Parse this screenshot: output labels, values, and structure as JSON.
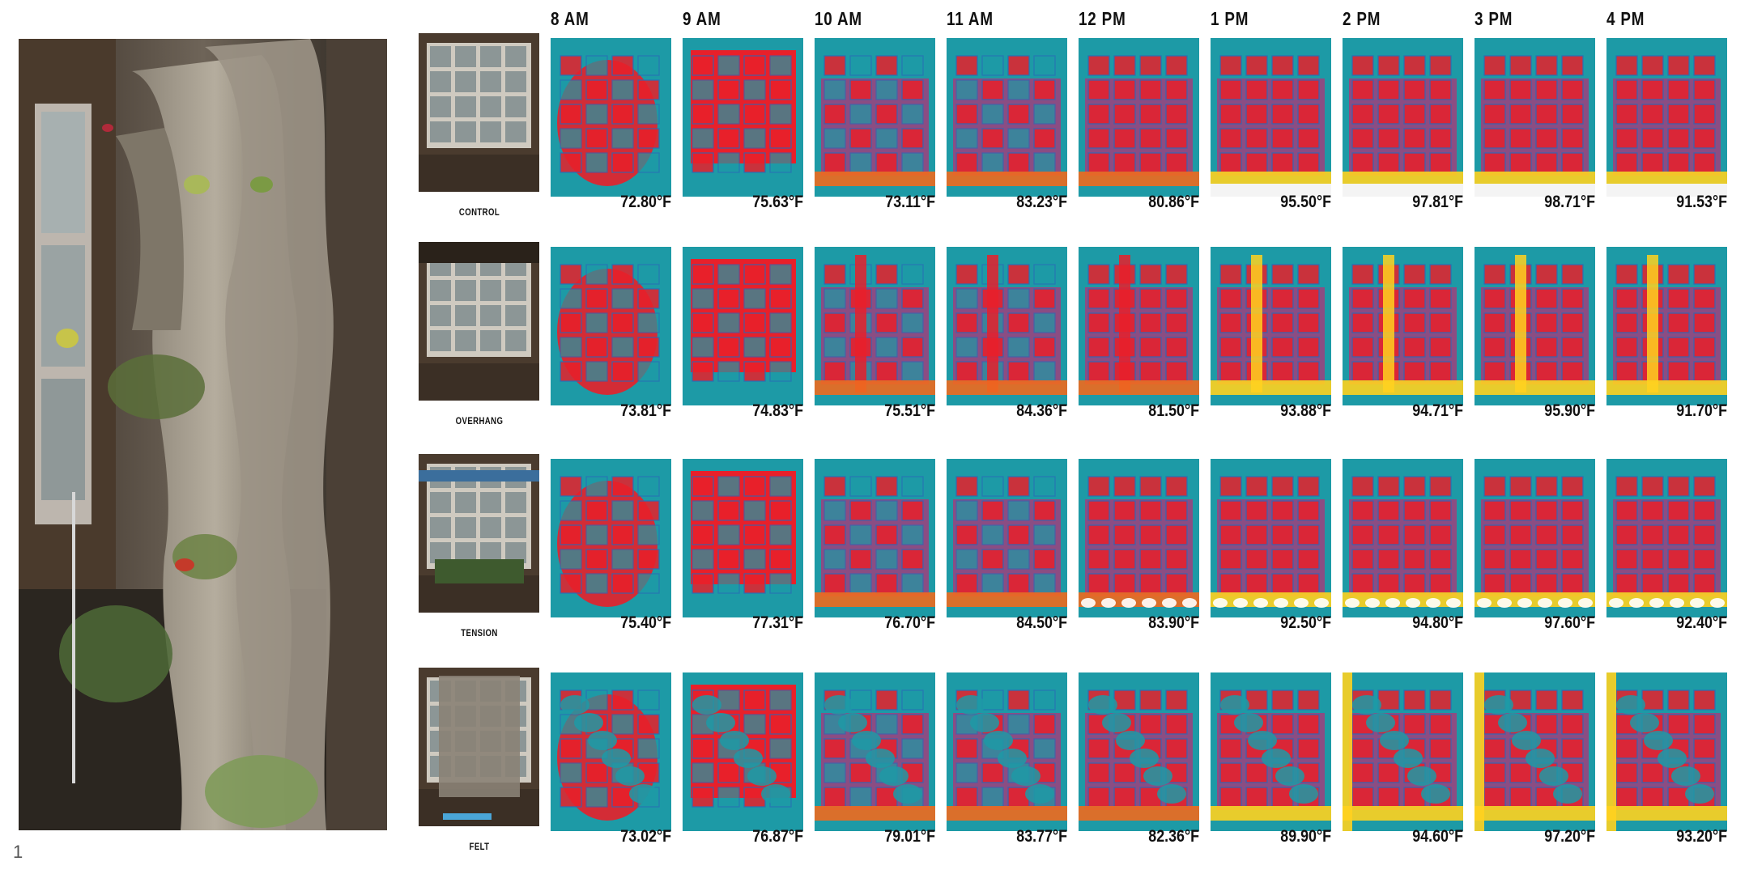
{
  "figure_number": "1",
  "time_labels": [
    "8 AM",
    "9 AM",
    "10 AM",
    "11 AM",
    "12 PM",
    "1 PM",
    "2 PM",
    "3 PM",
    "4 PM"
  ],
  "rows": [
    {
      "label": "CONTROL",
      "temps": [
        "72.80°F",
        "75.63°F",
        "73.11°F",
        "83.23°F",
        "80.86°F",
        "95.50°F",
        "97.81°F",
        "98.71°F",
        "91.53°F"
      ]
    },
    {
      "label": "OVERHANG",
      "temps": [
        "73.81°F",
        "74.83°F",
        "75.51°F",
        "84.36°F",
        "81.50°F",
        "93.88°F",
        "94.71°F",
        "95.90°F",
        "91.70°F"
      ]
    },
    {
      "label": "TENSION",
      "temps": [
        "75.40°F",
        "77.31°F",
        "76.70°F",
        "84.50°F",
        "83.90°F",
        "92.50°F",
        "94.80°F",
        "97.60°F",
        "92.40°F"
      ]
    },
    {
      "label": "FELT",
      "temps": [
        "73.02°F",
        "76.87°F",
        "79.01°F",
        "83.77°F",
        "82.36°F",
        "89.90°F",
        "94.60°F",
        "97.20°F",
        "93.20°F"
      ]
    }
  ],
  "colors": {
    "hot": "#e8202a",
    "warm": "#f06a1e",
    "hottest": "#ffd21f",
    "cool": "#1d9aa6",
    "cold": "#2b67b8",
    "mid": "#a83a7a"
  }
}
